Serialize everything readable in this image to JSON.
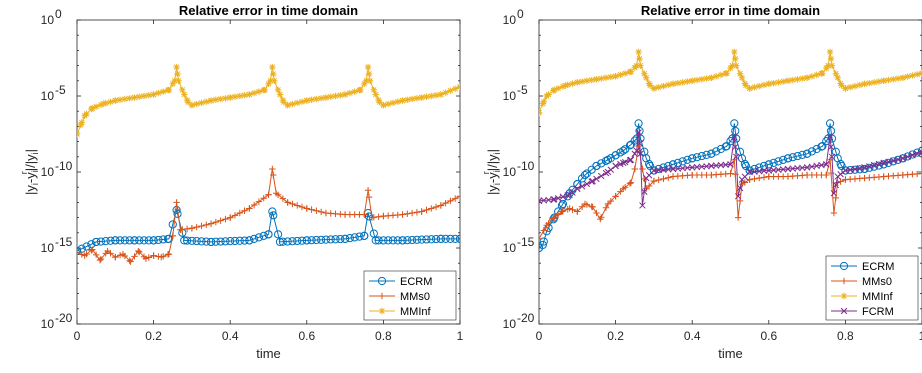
{
  "chart_data": [
    {
      "type": "line",
      "title": "Relative error in time domain",
      "xlabel": "time",
      "ylabel": "|y_i-y_i^r|/|y_i|",
      "yscale": "log",
      "xlim": [
        0,
        1
      ],
      "ylim": [
        1e-20,
        1
      ],
      "xticks": [
        0,
        0.2,
        0.4,
        0.6,
        0.8,
        1
      ],
      "xtick_labels": [
        "0",
        "0.2",
        "0.4",
        "0.6",
        "0.8",
        "1"
      ],
      "yticks": [
        -20,
        -15,
        -10,
        -5,
        0
      ],
      "ytick_labels": [
        "10",
        "10",
        "10",
        "10",
        "10"
      ],
      "ytick_exponents": [
        "-20",
        "-15",
        "-10",
        "-5",
        "0"
      ],
      "grid": false,
      "legend_position": "bottom-right",
      "series": [
        {
          "name": "ECRM",
          "color": "#0072BD",
          "marker": "circle",
          "x": [
            0.0,
            0.05,
            0.1,
            0.15,
            0.2,
            0.24,
            0.26,
            0.28,
            0.35,
            0.45,
            0.5,
            0.51,
            0.53,
            0.6,
            0.7,
            0.75,
            0.76,
            0.78,
            0.85,
            0.95,
            1.0
          ],
          "y_log10": [
            -15.2,
            -14.6,
            -14.5,
            -14.5,
            -14.5,
            -14.4,
            -12.5,
            -14.5,
            -14.6,
            -14.5,
            -14.1,
            -12.6,
            -14.6,
            -14.5,
            -14.4,
            -14.2,
            -12.7,
            -14.5,
            -14.5,
            -14.4,
            -14.4
          ]
        },
        {
          "name": "MMs0",
          "color": "#D95319",
          "marker": "plus",
          "x": [
            0.0,
            0.02,
            0.04,
            0.06,
            0.08,
            0.1,
            0.12,
            0.14,
            0.16,
            0.18,
            0.2,
            0.22,
            0.24,
            0.25,
            0.26,
            0.27,
            0.3,
            0.35,
            0.4,
            0.45,
            0.5,
            0.51,
            0.52,
            0.55,
            0.6,
            0.65,
            0.7,
            0.75,
            0.76,
            0.77,
            0.8,
            0.85,
            0.9,
            0.95,
            1.0
          ],
          "y_log10": [
            -15.3,
            -15.5,
            -15.1,
            -15.8,
            -15.2,
            -15.6,
            -15.4,
            -15.9,
            -15.2,
            -15.7,
            -15.5,
            -15.6,
            -15.4,
            -14.2,
            -12.0,
            -13.8,
            -13.7,
            -13.4,
            -13.0,
            -12.4,
            -11.5,
            -9.8,
            -11.4,
            -12.0,
            -12.4,
            -12.7,
            -12.8,
            -12.8,
            -11.2,
            -13.0,
            -12.9,
            -12.8,
            -12.6,
            -12.2,
            -11.6
          ]
        },
        {
          "name": "MMInf",
          "color": "#EDB120",
          "marker": "star",
          "x": [
            0.0,
            0.01,
            0.02,
            0.04,
            0.07,
            0.1,
            0.15,
            0.2,
            0.24,
            0.255,
            0.26,
            0.265,
            0.28,
            0.29,
            0.3,
            0.35,
            0.4,
            0.45,
            0.49,
            0.505,
            0.51,
            0.515,
            0.53,
            0.54,
            0.55,
            0.6,
            0.65,
            0.7,
            0.74,
            0.755,
            0.76,
            0.765,
            0.78,
            0.79,
            0.8,
            0.85,
            0.9,
            0.95,
            1.0
          ],
          "y_log10": [
            -7.5,
            -6.9,
            -6.3,
            -5.8,
            -5.5,
            -5.3,
            -5.1,
            -4.9,
            -4.6,
            -4.0,
            -3.1,
            -4.0,
            -4.9,
            -5.4,
            -5.6,
            -5.3,
            -5.1,
            -4.9,
            -4.6,
            -4.0,
            -3.1,
            -4.0,
            -4.9,
            -5.4,
            -5.6,
            -5.3,
            -5.1,
            -4.9,
            -4.6,
            -4.0,
            -3.1,
            -4.0,
            -4.9,
            -5.4,
            -5.6,
            -5.3,
            -5.1,
            -4.9,
            -4.4
          ]
        }
      ]
    },
    {
      "type": "line",
      "title": "Relative error in time domain",
      "xlabel": "time",
      "ylabel": "|y_i-y_i^r|/|y_i|",
      "yscale": "log",
      "xlim": [
        0,
        1
      ],
      "ylim": [
        1e-20,
        1
      ],
      "xticks": [
        0,
        0.2,
        0.4,
        0.6,
        0.8,
        1
      ],
      "xtick_labels": [
        "0",
        "0.2",
        "0.4",
        "0.6",
        "0.8",
        "1"
      ],
      "yticks": [
        -20,
        -15,
        -10,
        -5,
        0
      ],
      "ytick_labels": [
        "10",
        "10",
        "10",
        "10",
        "10"
      ],
      "ytick_exponents": [
        "-20",
        "-15",
        "-10",
        "-5",
        "0"
      ],
      "grid": false,
      "legend_position": "bottom-right",
      "series": [
        {
          "name": "ECRM",
          "color": "#0072BD",
          "marker": "circle",
          "x": [
            0.0,
            0.01,
            0.02,
            0.04,
            0.06,
            0.08,
            0.1,
            0.12,
            0.15,
            0.18,
            0.2,
            0.22,
            0.24,
            0.255,
            0.26,
            0.265,
            0.28,
            0.29,
            0.3,
            0.35,
            0.4,
            0.45,
            0.49,
            0.505,
            0.51,
            0.515,
            0.53,
            0.54,
            0.55,
            0.6,
            0.65,
            0.7,
            0.74,
            0.755,
            0.76,
            0.765,
            0.78,
            0.79,
            0.8,
            0.85,
            0.9,
            0.95,
            1.0
          ],
          "y_log10": [
            -15.0,
            -14.8,
            -13.9,
            -13.0,
            -12.2,
            -11.4,
            -10.8,
            -10.2,
            -9.6,
            -9.2,
            -8.9,
            -8.6,
            -8.2,
            -7.8,
            -6.8,
            -7.8,
            -9.1,
            -9.6,
            -9.9,
            -9.5,
            -9.1,
            -8.8,
            -8.3,
            -7.8,
            -6.8,
            -7.8,
            -9.1,
            -9.6,
            -9.9,
            -9.5,
            -9.1,
            -8.8,
            -8.3,
            -7.8,
            -6.8,
            -7.8,
            -9.1,
            -9.6,
            -9.9,
            -9.8,
            -9.5,
            -9.1,
            -8.6
          ]
        },
        {
          "name": "MMs0",
          "color": "#D95319",
          "marker": "plus",
          "x": [
            0.0,
            0.02,
            0.04,
            0.06,
            0.08,
            0.1,
            0.12,
            0.14,
            0.16,
            0.18,
            0.2,
            0.22,
            0.24,
            0.25,
            0.26,
            0.27,
            0.28,
            0.3,
            0.35,
            0.4,
            0.45,
            0.5,
            0.51,
            0.52,
            0.53,
            0.55,
            0.6,
            0.65,
            0.7,
            0.75,
            0.76,
            0.77,
            0.78,
            0.8,
            0.85,
            0.9,
            0.95,
            1.0
          ],
          "y_log10": [
            -14.4,
            -13.5,
            -13.0,
            -12.6,
            -12.4,
            -12.6,
            -12.1,
            -12.3,
            -13.1,
            -12.1,
            -11.6,
            -11.1,
            -10.7,
            -9.8,
            -8.3,
            -9.8,
            -11.1,
            -10.6,
            -10.3,
            -10.2,
            -10.2,
            -10.1,
            -9.2,
            -13.0,
            -10.8,
            -10.5,
            -10.3,
            -10.3,
            -10.2,
            -10.2,
            -9.2,
            -12.7,
            -10.7,
            -10.5,
            -10.4,
            -10.3,
            -10.2,
            -10.1
          ]
        },
        {
          "name": "MMInf",
          "color": "#EDB120",
          "marker": "star",
          "x": [
            0.0,
            0.01,
            0.02,
            0.04,
            0.07,
            0.1,
            0.15,
            0.2,
            0.24,
            0.255,
            0.26,
            0.265,
            0.28,
            0.29,
            0.3,
            0.35,
            0.4,
            0.45,
            0.49,
            0.505,
            0.51,
            0.515,
            0.53,
            0.54,
            0.55,
            0.6,
            0.65,
            0.7,
            0.74,
            0.755,
            0.76,
            0.765,
            0.78,
            0.79,
            0.8,
            0.85,
            0.9,
            0.95,
            1.0
          ],
          "y_log10": [
            -6.1,
            -5.5,
            -5.0,
            -4.6,
            -4.3,
            -4.1,
            -3.9,
            -3.7,
            -3.4,
            -3.0,
            -2.1,
            -3.0,
            -3.8,
            -4.3,
            -4.5,
            -4.2,
            -4.0,
            -3.8,
            -3.5,
            -3.0,
            -2.1,
            -3.0,
            -3.8,
            -4.3,
            -4.5,
            -4.2,
            -4.0,
            -3.8,
            -3.5,
            -3.0,
            -2.1,
            -3.0,
            -3.8,
            -4.3,
            -4.5,
            -4.2,
            -4.0,
            -3.8,
            -3.5
          ]
        },
        {
          "name": "FCRM",
          "color": "#7E2F8E",
          "marker": "x",
          "x": [
            0.0,
            0.04,
            0.08,
            0.1,
            0.14,
            0.18,
            0.2,
            0.22,
            0.24,
            0.255,
            0.26,
            0.265,
            0.27,
            0.28,
            0.3,
            0.35,
            0.4,
            0.45,
            0.5,
            0.51,
            0.515,
            0.52,
            0.53,
            0.55,
            0.6,
            0.65,
            0.7,
            0.75,
            0.76,
            0.765,
            0.77,
            0.78,
            0.8,
            0.85,
            0.9,
            0.95,
            1.0
          ],
          "y_log10": [
            -11.9,
            -11.8,
            -11.5,
            -11.1,
            -10.6,
            -10.0,
            -9.6,
            -9.4,
            -9.2,
            -8.6,
            -7.4,
            -8.8,
            -12.2,
            -10.4,
            -9.9,
            -9.8,
            -9.7,
            -9.6,
            -9.5,
            -7.7,
            -9.0,
            -11.6,
            -10.5,
            -10.0,
            -9.9,
            -9.8,
            -9.7,
            -9.5,
            -7.7,
            -9.0,
            -11.4,
            -10.3,
            -9.9,
            -9.7,
            -9.4,
            -9.1,
            -8.7
          ]
        }
      ]
    }
  ]
}
